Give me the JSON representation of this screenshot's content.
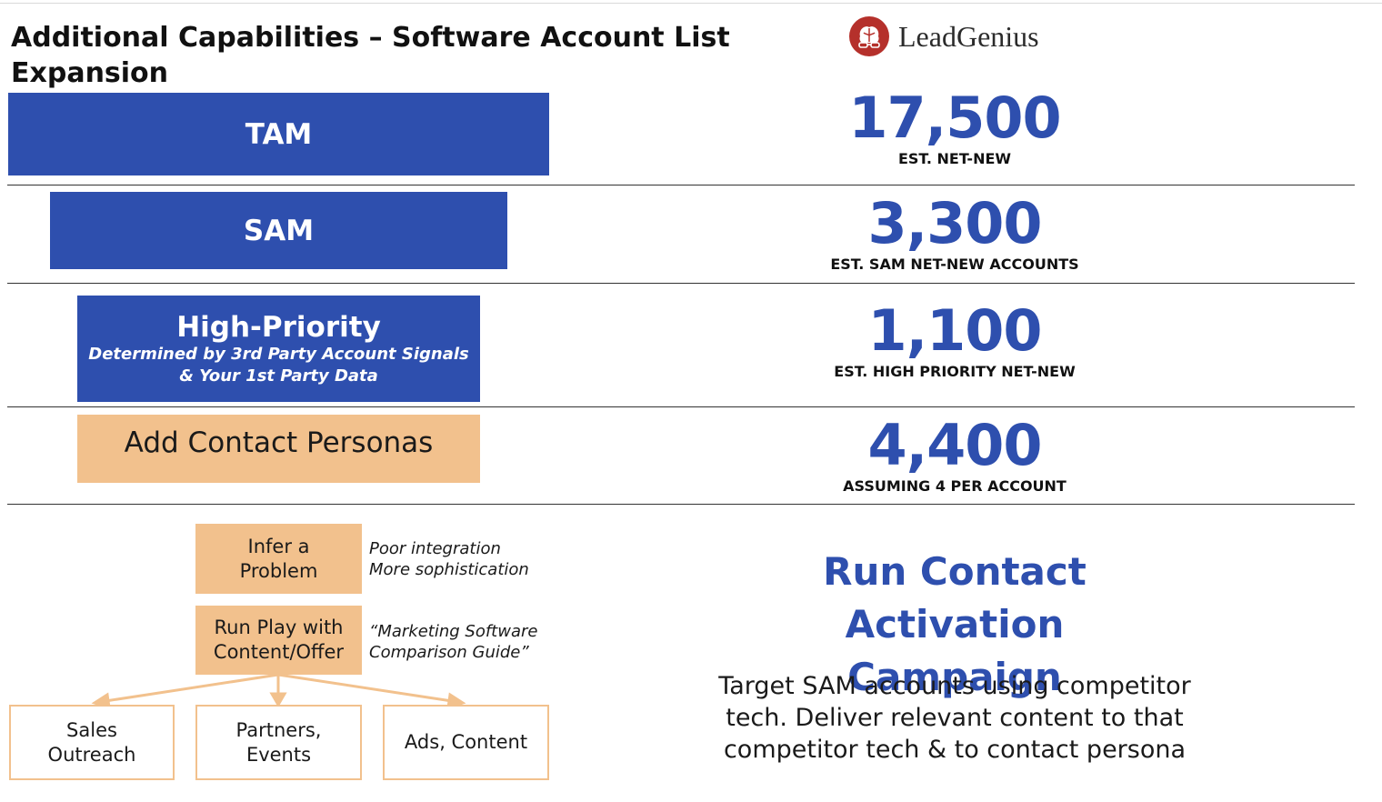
{
  "header": {
    "title": "Additional Capabilities – Software Account List Expansion",
    "brand": "LeadGenius"
  },
  "tiers": [
    {
      "label": "TAM",
      "sub": "",
      "value": "17,500",
      "caption": "EST. NET-NEW"
    },
    {
      "label": "SAM",
      "sub": "",
      "value": "3,300",
      "caption": "EST. SAM NET-NEW ACCOUNTS"
    },
    {
      "label": "High-Priority",
      "sub": "Determined by 3rd Party Account Signals & Your 1st Party Data",
      "value": "1,100",
      "caption": "EST. HIGH PRIORITY NET-NEW"
    },
    {
      "label": "Add Contact Personas",
      "sub": "",
      "value": "4,400",
      "caption": "ASSUMING 4 PER ACCOUNT"
    }
  ],
  "flow": {
    "step1": {
      "label": "Infer a Problem",
      "note_line1": "Poor integration",
      "note_line2": "More sophistication"
    },
    "step2": {
      "label": "Run Play with Content/Offer",
      "note_line1": "“Marketing Software",
      "note_line2": "Comparison Guide”"
    },
    "channels": [
      "Sales Outreach",
      "Partners, Events",
      "Ads, Content"
    ]
  },
  "campaign": {
    "title": "Run Contact Activation Campaign",
    "body": "Target SAM accounts using competitor tech. Deliver relevant content to that competitor tech & to contact persona"
  },
  "colors": {
    "blue": "#2e4fae",
    "peach": "#f2c18d",
    "logo": "#b5302b"
  }
}
